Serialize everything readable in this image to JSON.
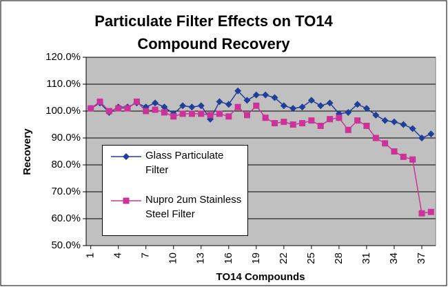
{
  "chart_data": {
    "type": "line",
    "title": "Particulate Filter Effects on TO14 Compound Recovery",
    "x_label": "TO14 Compounds",
    "y_label": "Recovery",
    "x": [
      1,
      2,
      3,
      4,
      5,
      6,
      7,
      8,
      9,
      10,
      11,
      12,
      13,
      14,
      15,
      16,
      17,
      18,
      19,
      20,
      21,
      22,
      23,
      24,
      25,
      26,
      27,
      28,
      29,
      30,
      31,
      32,
      33,
      34,
      35,
      36,
      37,
      38
    ],
    "xlim": [
      0.5,
      38.5
    ],
    "xticks": [
      1,
      4,
      7,
      10,
      13,
      16,
      19,
      22,
      25,
      28,
      31,
      34,
      37
    ],
    "ylim": [
      50,
      120
    ],
    "yticks": [
      {
        "value": 50,
        "label": "50.0%"
      },
      {
        "value": 60,
        "label": "60.0%"
      },
      {
        "value": 70,
        "label": "70.0%"
      },
      {
        "value": 80,
        "label": "80.0%"
      },
      {
        "value": 90,
        "label": "90.0%"
      },
      {
        "value": 100,
        "label": "100.0%"
      },
      {
        "value": 110,
        "label": "110.0%"
      },
      {
        "value": 120,
        "label": "120.0%"
      }
    ],
    "grid": true,
    "series": [
      {
        "name": "Glass Particulate Filter",
        "color": "#1f3f99",
        "marker": "diamond",
        "values": [
          101,
          103,
          99.5,
          101.5,
          101.5,
          103,
          101.5,
          103,
          101.5,
          99,
          102,
          101.5,
          102,
          97,
          103.5,
          102.5,
          107.5,
          104,
          106,
          106,
          105,
          102,
          101,
          101.5,
          104,
          102,
          103,
          99,
          99.5,
          102.5,
          101,
          98.5,
          96.5,
          96,
          95,
          93.5,
          90,
          91.5
        ]
      },
      {
        "name": "Nupro 2um Stainless Steel Filter",
        "color": "#cc3399",
        "marker": "square",
        "values": [
          101,
          103.5,
          100,
          101,
          101,
          103.5,
          100,
          100.5,
          99.5,
          98,
          99,
          99,
          99,
          98.5,
          99,
          98,
          101.5,
          98.5,
          102,
          97.5,
          95.5,
          96,
          95,
          95.5,
          96.5,
          94.5,
          97,
          97.5,
          93,
          96.5,
          94.5,
          90,
          88,
          85,
          83,
          82,
          62,
          62.5
        ]
      }
    ]
  }
}
